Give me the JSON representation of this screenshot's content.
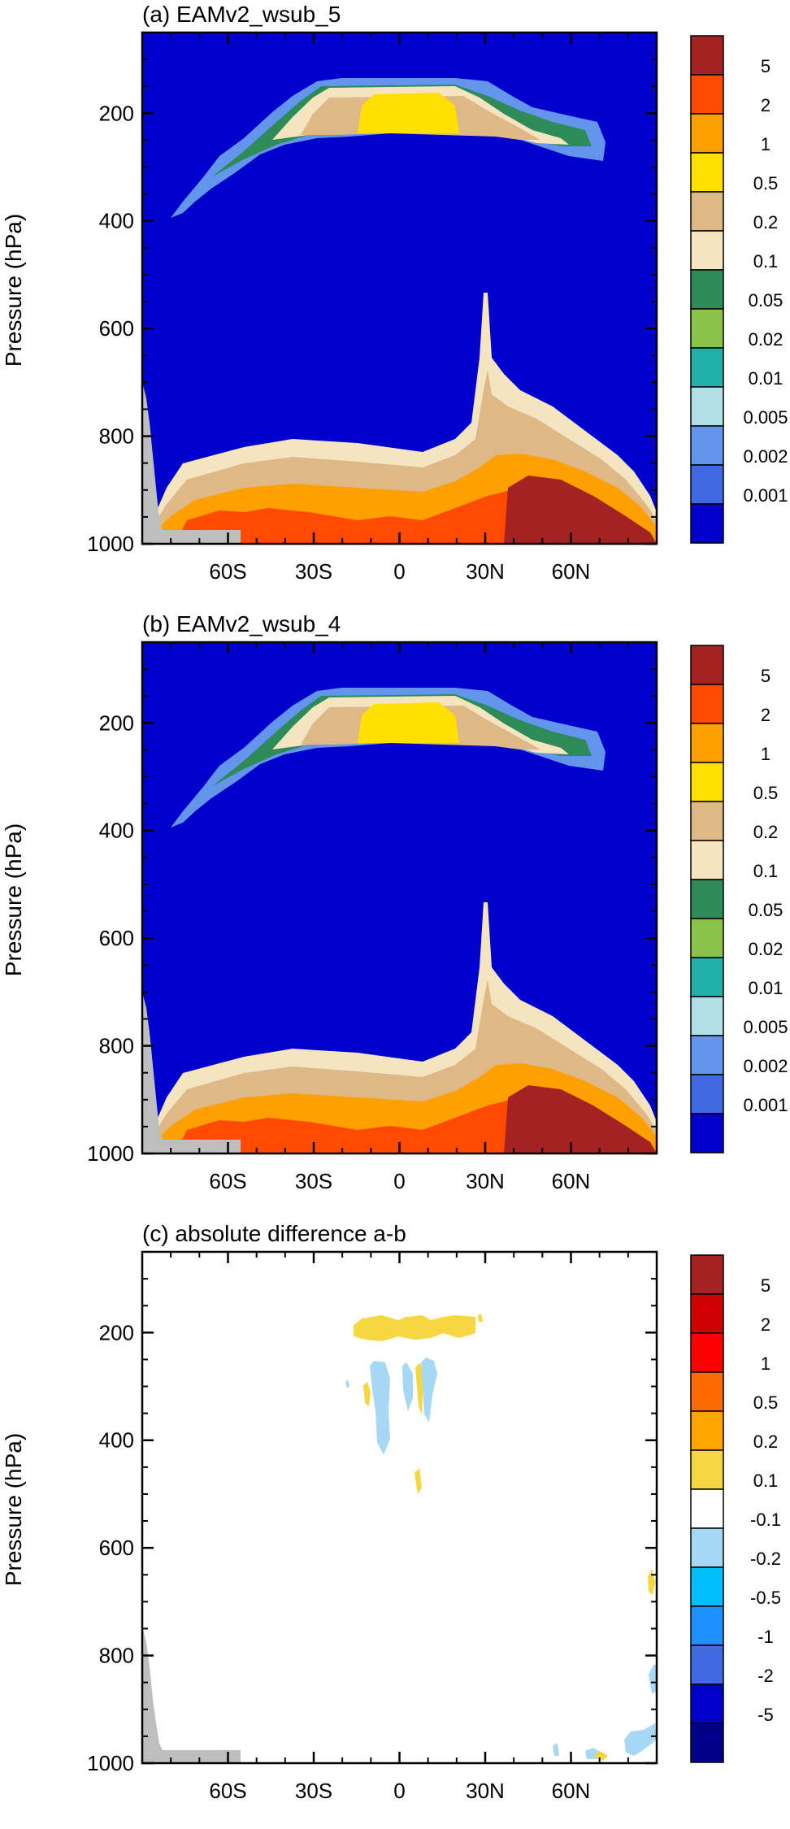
{
  "chart_data": [
    {
      "type": "heatmap",
      "title": "(a) EAMv2_wsub_5",
      "ylabel": "Pressure (hPa)",
      "xlim": [
        -90,
        90
      ],
      "ylim": [
        1000,
        50
      ],
      "x_ticks": [
        -60,
        -30,
        0,
        30,
        60
      ],
      "x_tick_labels": [
        "60S",
        "30S",
        "0",
        "30N",
        "60N"
      ],
      "y_ticks": [
        200,
        400,
        600,
        800,
        1000
      ],
      "y_tick_labels": [
        "200",
        "400",
        "600",
        "800",
        "1000"
      ],
      "colorbar_labels": [
        "5",
        "2",
        "1",
        "0.5",
        "0.2",
        "0.1",
        "0.05",
        "0.02",
        "0.01",
        "0.005",
        "0.002",
        "0.001"
      ],
      "colorbar_colors": [
        "#A52222",
        "#FF4A00",
        "#FFA000",
        "#FFE000",
        "#DEB887",
        "#F5E4C0",
        "#2E8B57",
        "#8BC34A",
        "#20B2AA",
        "#B0E0E6",
        "#6495ED",
        "#4169E1",
        "#0000CD"
      ],
      "background_color": "#0000CD",
      "land_color": "#BEBEBE"
    },
    {
      "type": "heatmap",
      "title": "(b) EAMv2_wsub_4",
      "ylabel": "Pressure (hPa)",
      "xlim": [
        -90,
        90
      ],
      "ylim": [
        1000,
        50
      ],
      "x_ticks": [
        -60,
        -30,
        0,
        30,
        60
      ],
      "x_tick_labels": [
        "60S",
        "30S",
        "0",
        "30N",
        "60N"
      ],
      "y_ticks": [
        200,
        400,
        600,
        800,
        1000
      ],
      "y_tick_labels": [
        "200",
        "400",
        "600",
        "800",
        "1000"
      ],
      "colorbar_labels": [
        "5",
        "2",
        "1",
        "0.5",
        "0.2",
        "0.1",
        "0.05",
        "0.02",
        "0.01",
        "0.005",
        "0.002",
        "0.001"
      ],
      "colorbar_colors": [
        "#A52222",
        "#FF4A00",
        "#FFA000",
        "#FFE000",
        "#DEB887",
        "#F5E4C0",
        "#2E8B57",
        "#8BC34A",
        "#20B2AA",
        "#B0E0E6",
        "#6495ED",
        "#4169E1",
        "#0000CD"
      ],
      "background_color": "#0000CD",
      "land_color": "#BEBEBE"
    },
    {
      "type": "heatmap",
      "title": "(c) absolute difference a-b",
      "ylabel": "Pressure (hPa)",
      "xlim": [
        -90,
        90
      ],
      "ylim": [
        1000,
        50
      ],
      "x_ticks": [
        -60,
        -30,
        0,
        30,
        60
      ],
      "x_tick_labels": [
        "60S",
        "30S",
        "0",
        "30N",
        "60N"
      ],
      "y_ticks": [
        200,
        400,
        600,
        800,
        1000
      ],
      "y_tick_labels": [
        "200",
        "400",
        "600",
        "800",
        "1000"
      ],
      "colorbar_labels": [
        "5",
        "2",
        "1",
        "0.5",
        "0.2",
        "0.1",
        "-0.1",
        "-0.2",
        "-0.5",
        "-1",
        "-2",
        "-5"
      ],
      "colorbar_colors": [
        "#A52222",
        "#D00000",
        "#FF0000",
        "#FF6A00",
        "#FFA500",
        "#F5D742",
        "#FFFFFF",
        "#A6D8F5",
        "#00BFFF",
        "#1E90FF",
        "#4169E1",
        "#0000CD",
        "#00008B"
      ],
      "background_color": "#FFFFFF",
      "land_color": "#BEBEBE"
    }
  ]
}
